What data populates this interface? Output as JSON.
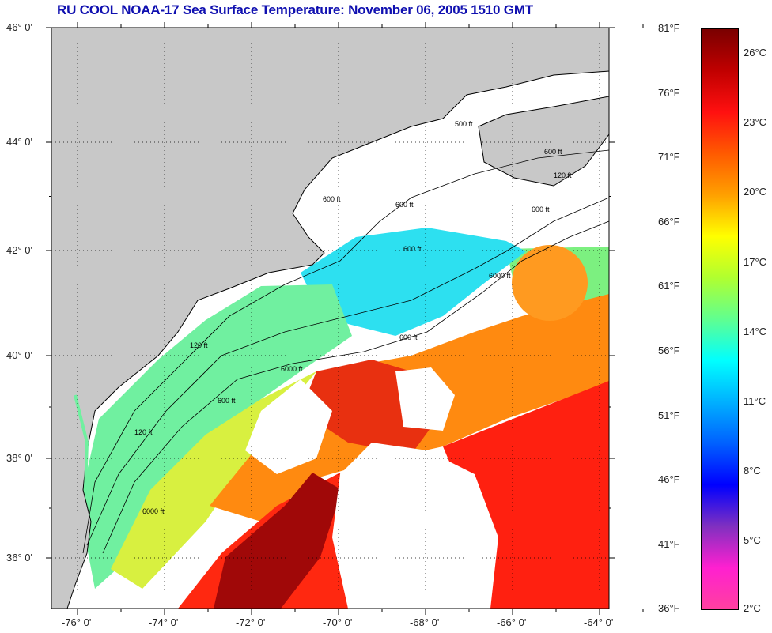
{
  "title": "RU COOL  NOAA-17  Sea Surface Temperature:  November 06, 2005 1510 GMT",
  "map": {
    "lat_labels": [
      "46° 0'",
      "44° 0'",
      "42° 0'",
      "40° 0'",
      "38° 0'",
      "36° 0'"
    ],
    "lon_labels": [
      "-76° 0'",
      "-74° 0'",
      "-72° 0'",
      "-70° 0'",
      "-68° 0'",
      "-66° 0'",
      "-64° 0'"
    ],
    "contour_labels": [
      "600 ft",
      "600 ft",
      "600 ft",
      "600 ft",
      "600 ft",
      "6000 ft",
      "6000 ft",
      "6000 ft",
      "120 ft",
      "120 ft",
      "120 ft",
      "500 ft",
      "600 ft",
      "600 ft"
    ],
    "colors": {
      "land": "#c8c8c8",
      "cloud": "#ffffff",
      "grid": "#000000"
    }
  },
  "colorbar": {
    "fahrenheit_labels": [
      "81°F",
      "76°F",
      "71°F",
      "66°F",
      "61°F",
      "56°F",
      "51°F",
      "46°F",
      "41°F",
      "36°F"
    ],
    "celsius_labels": [
      "26°C",
      "23°C",
      "20°C",
      "17°C",
      "14°C",
      "11°C",
      "8°C",
      "5°C",
      "2°C"
    ],
    "gradient": [
      "#7a0000",
      "#c00000",
      "#ff1010",
      "#ff5a00",
      "#ffa000",
      "#ffff00",
      "#b0ff30",
      "#60ff90",
      "#00ffff",
      "#00b0ff",
      "#0060ff",
      "#0000ff",
      "#8030c0",
      "#ff20d0",
      "#ff40a0"
    ]
  }
}
